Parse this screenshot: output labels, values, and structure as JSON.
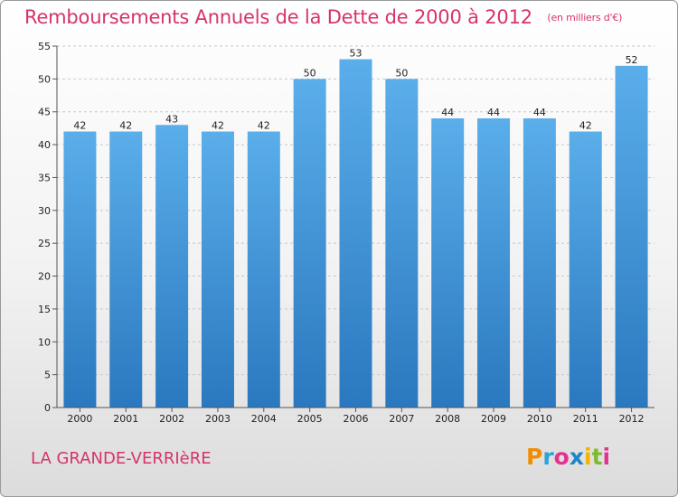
{
  "title": "Remboursements Annuels de la Dette de 2000 à 2012",
  "unit_note": "(en milliers d'€)",
  "commune": "LA GRANDE-VERRIèRE",
  "logo": {
    "text": "Proxiti",
    "colors": [
      "#f28c00",
      "#2aa3d8",
      "#e4338f",
      "#1d86c8",
      "#f2b400",
      "#7dbb2f",
      "#e4338f"
    ]
  },
  "colors": {
    "title": "#d6336c",
    "bar_top": "#5aaeea",
    "bar_bottom": "#2a78bf"
  },
  "chart_data": {
    "type": "bar",
    "categories": [
      "2000",
      "2001",
      "2002",
      "2003",
      "2004",
      "2005",
      "2006",
      "2007",
      "2008",
      "2009",
      "2010",
      "2011",
      "2012"
    ],
    "values": [
      42,
      42,
      43,
      42,
      42,
      50,
      53,
      50,
      44,
      44,
      44,
      42,
      52
    ],
    "ylim": [
      0,
      55
    ],
    "yticks": [
      0,
      5,
      10,
      15,
      20,
      25,
      30,
      35,
      40,
      45,
      50,
      55
    ],
    "grid": true
  }
}
